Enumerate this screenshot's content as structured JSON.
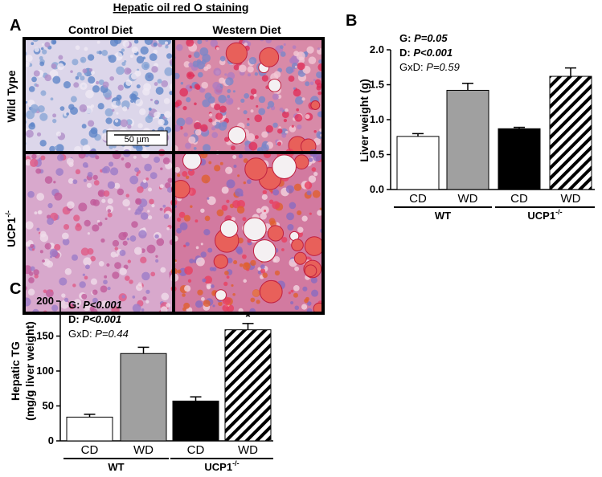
{
  "panel_a": {
    "letter": "A",
    "title": "Hepatic oil red O staining",
    "columns": [
      "Control Diet",
      "Western Diet"
    ],
    "rows": [
      {
        "name": "Wild Type"
      },
      {
        "name": "UCP1",
        "superscript": "-/-"
      }
    ],
    "scale_bar": "50 µm"
  },
  "chart_data": [
    {
      "type": "bar",
      "letter": "B",
      "y_label": "Liver weight (g)",
      "stats": [
        {
          "text": "G: ",
          "p": "P=0.05",
          "bold": true
        },
        {
          "text": "D: ",
          "p": "P<0.001",
          "bold": true
        },
        {
          "text": "GxD: ",
          "p": "P=0.59",
          "bold": false
        }
      ],
      "categories": [
        "CD",
        "WD",
        "CD",
        "WD"
      ],
      "values": [
        0.76,
        1.42,
        0.87,
        1.62
      ],
      "errors": [
        0.04,
        0.1,
        0.02,
        0.12
      ],
      "colors": [
        "#ffffff",
        "#a0a0a0",
        "#000000",
        "hatch"
      ],
      "groups": [
        {
          "name": "WT"
        },
        {
          "name": "UCP1",
          "superscript": "-/-"
        }
      ],
      "ylim": [
        0,
        2
      ],
      "yticks": [
        {
          "value": 0,
          "label": "0.0"
        },
        {
          "value": 0.5,
          "label": "0.5"
        },
        {
          "value": 1,
          "label": "1.0"
        },
        {
          "value": 1.5,
          "label": "1.5"
        },
        {
          "value": 2,
          "label": "2.0"
        }
      ]
    },
    {
      "type": "bar",
      "letter": "C",
      "y_label": [
        "Hepatic TG",
        "(mg/g liver weight)"
      ],
      "stats": [
        {
          "text": "G: ",
          "p": "P<0.001",
          "bold": true
        },
        {
          "text": "D: ",
          "p": "P<0.001",
          "bold": true
        },
        {
          "text": "GxD: ",
          "p": "P=0.44",
          "bold": false
        }
      ],
      "categories": [
        "CD",
        "WD",
        "CD",
        "WD"
      ],
      "values": [
        34,
        125,
        57,
        159
      ],
      "errors": [
        4,
        9,
        6,
        9
      ],
      "colors": [
        "#ffffff",
        "#a0a0a0",
        "#000000",
        "hatch"
      ],
      "groups": [
        {
          "name": "WT"
        },
        {
          "name": "UCP1",
          "superscript": "-/-"
        }
      ],
      "annotations": [
        {
          "text": "*",
          "index": 3
        }
      ],
      "ylim": [
        0,
        200
      ],
      "yticks": [
        0,
        50,
        100,
        150,
        200
      ]
    }
  ]
}
